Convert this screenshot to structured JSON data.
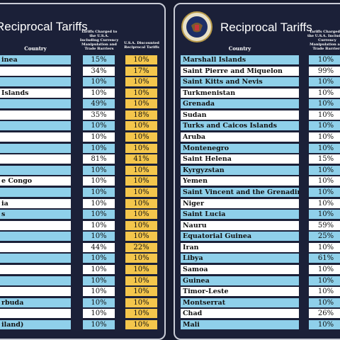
{
  "left": {
    "title": "Reciprocal Tariffs",
    "headers": {
      "country": "Country",
      "charged": "Tariffs Charged to the U.S.A. Including Currency Manipulation and Trade Barriers",
      "discounted": "U.S.A. Discounted Reciprocal Tariffs"
    },
    "rows": [
      {
        "country": "inea",
        "charged": "15%",
        "discounted": "10%"
      },
      {
        "country": null,
        "charged": "34%",
        "discounted": "17%"
      },
      {
        "country": null,
        "charged": "10%",
        "discounted": "10%"
      },
      {
        "country": "Islands",
        "charged": "10%",
        "discounted": "10%"
      },
      {
        "country": null,
        "charged": "49%",
        "discounted": "10%"
      },
      {
        "country": null,
        "charged": "35%",
        "discounted": "18%"
      },
      {
        "country": null,
        "charged": "10%",
        "discounted": "10%"
      },
      {
        "country": null,
        "charged": "10%",
        "discounted": "10%"
      },
      {
        "country": null,
        "charged": "10%",
        "discounted": "10%"
      },
      {
        "country": null,
        "charged": "81%",
        "discounted": "41%"
      },
      {
        "country": null,
        "charged": "10%",
        "discounted": "10%"
      },
      {
        "country": "e Congo",
        "charged": "10%",
        "discounted": "10%"
      },
      {
        "country": null,
        "charged": "10%",
        "discounted": "10%"
      },
      {
        "country": "ia",
        "charged": "10%",
        "discounted": "10%"
      },
      {
        "country": "s",
        "charged": "10%",
        "discounted": "10%"
      },
      {
        "country": null,
        "charged": "10%",
        "discounted": "10%"
      },
      {
        "country": null,
        "charged": "10%",
        "discounted": "10%"
      },
      {
        "country": null,
        "charged": "44%",
        "discounted": "22%"
      },
      {
        "country": null,
        "charged": "10%",
        "discounted": "10%"
      },
      {
        "country": null,
        "charged": "10%",
        "discounted": "10%"
      },
      {
        "country": null,
        "charged": "10%",
        "discounted": "10%"
      },
      {
        "country": null,
        "charged": "10%",
        "discounted": "10%"
      },
      {
        "country": "rbuda",
        "charged": "10%",
        "discounted": "10%"
      },
      {
        "country": null,
        "charged": "10%",
        "discounted": "10%"
      },
      {
        "country": "iland)",
        "charged": "10%",
        "discounted": "10%"
      }
    ]
  },
  "right": {
    "title": "Reciprocal Tariffs",
    "headers": {
      "country": "Country",
      "charged": "Tariffs Charged to the U.S.A. Including Currency Manipulation and Trade Barriers"
    },
    "rows": [
      {
        "country": "Marshall Islands",
        "charged": "10%"
      },
      {
        "country": "Saint Pierre and Miquelon",
        "charged": "99%"
      },
      {
        "country": "Saint Kitts and Nevis",
        "charged": "10%"
      },
      {
        "country": "Turkmenistan",
        "charged": "10%"
      },
      {
        "country": "Grenada",
        "charged": "10%"
      },
      {
        "country": "Sudan",
        "charged": "10%"
      },
      {
        "country": "Turks and Caicos Islands",
        "charged": "10%"
      },
      {
        "country": "Aruba",
        "charged": "10%"
      },
      {
        "country": "Montenegro",
        "charged": "10%"
      },
      {
        "country": "Saint Helena",
        "charged": "15%"
      },
      {
        "country": "Kyrgyzstan",
        "charged": "10%"
      },
      {
        "country": "Yemen",
        "charged": "10%"
      },
      {
        "country": "Saint Vincent and the Grenadines",
        "charged": "10%"
      },
      {
        "country": "Niger",
        "charged": "10%"
      },
      {
        "country": "Saint Lucia",
        "charged": "10%"
      },
      {
        "country": "Nauru",
        "charged": "59%"
      },
      {
        "country": "Equatorial Guinea",
        "charged": "25%"
      },
      {
        "country": "Iran",
        "charged": "10%"
      },
      {
        "country": "Libya",
        "charged": "61%"
      },
      {
        "country": "Samoa",
        "charged": "10%"
      },
      {
        "country": "Guinea",
        "charged": "10%"
      },
      {
        "country": "Timor-Leste",
        "charged": "10%"
      },
      {
        "country": "Montserrat",
        "charged": "10%"
      },
      {
        "country": "Chad",
        "charged": "26%"
      },
      {
        "country": "Mali",
        "charged": "10%"
      }
    ]
  }
}
